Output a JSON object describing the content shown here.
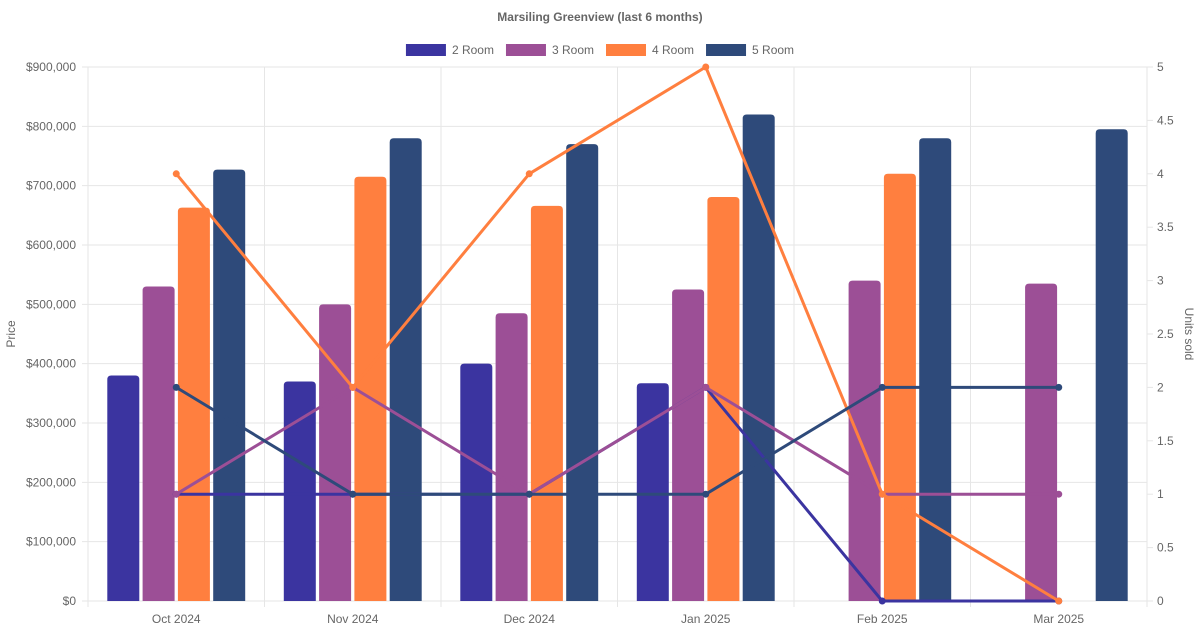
{
  "chart_data": {
    "type": "bar",
    "title": "Marsiling Greenview (last 6 months)",
    "categories": [
      "Oct 2024",
      "Nov 2024",
      "Dec 2024",
      "Jan 2025",
      "Feb 2025",
      "Mar 2025"
    ],
    "ylabel": "Price",
    "y2label": "Units sold",
    "ylim": [
      0,
      900000
    ],
    "y2lim": [
      0,
      5
    ],
    "y_ticks": [
      "$0",
      "$100,000",
      "$200,000",
      "$300,000",
      "$400,000",
      "$500,000",
      "$600,000",
      "$700,000",
      "$800,000",
      "$900,000"
    ],
    "y2_ticks": [
      "0",
      "0.5",
      "1",
      "1.5",
      "2",
      "2.5",
      "3",
      "3.5",
      "4",
      "4.5",
      "5"
    ],
    "legend_position": "top-center",
    "series": [
      {
        "name": "2 Room",
        "color": "#3b34a0",
        "values": [
          380000,
          370000,
          400000,
          367000,
          null,
          null
        ],
        "units_sold": [
          1,
          1,
          1,
          2,
          0,
          0
        ]
      },
      {
        "name": "3 Room",
        "color": "#9c4f96",
        "values": [
          530000,
          500000,
          485000,
          525000,
          540000,
          535000
        ],
        "units_sold": [
          1,
          2,
          1,
          2,
          1,
          1
        ]
      },
      {
        "name": "4 Room",
        "color": "#ff7f3f",
        "values": [
          663000,
          715000,
          666000,
          681000,
          720000,
          null
        ],
        "units_sold": [
          4,
          2,
          4,
          5,
          1,
          0
        ]
      },
      {
        "name": "5 Room",
        "color": "#2e4a7a",
        "values": [
          727000,
          780000,
          770000,
          820000,
          780000,
          795000
        ],
        "units_sold": [
          2,
          1,
          1,
          1,
          2,
          2
        ]
      }
    ]
  }
}
